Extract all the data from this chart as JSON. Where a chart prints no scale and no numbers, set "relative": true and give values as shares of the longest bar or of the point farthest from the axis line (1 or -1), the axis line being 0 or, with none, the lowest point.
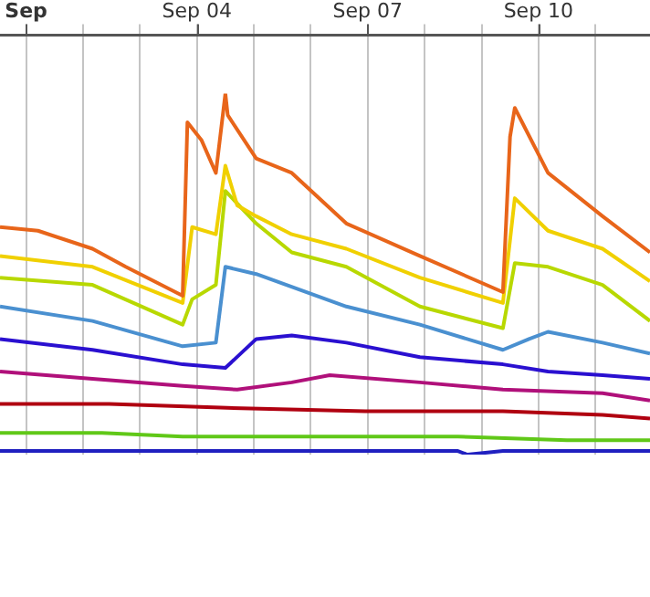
{
  "chart_data": [
    {
      "type": "line",
      "relative": true,
      "grid": "x",
      "xlim": [
        "--08-31T13:00",
        "--09-11T23:00"
      ],
      "xticks": [
        {
          "value": "--09-01",
          "label": "Sep"
        },
        {
          "value": "--09-02",
          "label": null
        },
        {
          "value": "--09-03",
          "label": null
        },
        {
          "value": "--09-04",
          "label": "Sep 04"
        },
        {
          "value": "--09-05",
          "label": null
        },
        {
          "value": "--09-06",
          "label": null
        },
        {
          "value": "--09-07",
          "label": "Sep 07"
        },
        {
          "value": "--09-08",
          "label": null
        },
        {
          "value": "--09-09",
          "label": null
        },
        {
          "value": "--09-10",
          "label": "Sep 10"
        },
        {
          "value": "--09-11",
          "label": null
        }
      ],
      "series": [
        {
          "color": "#e8651a",
          "x": [
            "--08-31T13:00",
            "--09-01T05:00",
            "--09-02T04:00",
            "--09-02T18:00",
            "--09-03T18:00",
            "--09-03T20:00",
            "--09-04T02:00",
            "--09-04T08:00",
            "--09-04T12:00",
            "--09-04T13:00",
            "--09-05T01:00",
            "--09-05T16:00",
            "--09-06T15:00",
            "--09-07T22:00",
            "--09-09T09:00",
            "--09-09T12:00",
            "--09-09T14:00",
            "--09-10T04:00",
            "--09-11T03:00",
            "--09-11T23:00"
          ],
          "values": [
            0.63,
            0.62,
            0.57,
            0.52,
            0.44,
            0.92,
            0.87,
            0.78,
            1,
            0.94,
            0.82,
            0.78,
            0.64,
            0.55,
            0.45,
            0.88,
            0.96,
            0.78,
            0.66,
            0.56
          ]
        },
        {
          "color": "#f0d000",
          "x": [
            "--08-31T13:00",
            "--09-02T04:00",
            "--09-03T18:00",
            "--09-03T22:00",
            "--09-04T08:00",
            "--09-04T12:00",
            "--09-04T17:00",
            "--09-05T01:00",
            "--09-05T16:00",
            "--09-06T15:00",
            "--09-07T22:00",
            "--09-09T09:00",
            "--09-09T14:00",
            "--09-10T04:00",
            "--09-11T03:00",
            "--09-11T23:00"
          ],
          "values": [
            0.55,
            0.52,
            0.42,
            0.63,
            0.61,
            0.8,
            0.69,
            0.66,
            0.61,
            0.57,
            0.49,
            0.42,
            0.71,
            0.62,
            0.57,
            0.48
          ]
        },
        {
          "color": "#b8d800",
          "x": [
            "--08-31T13:00",
            "--09-02T04:00",
            "--09-03T18:00",
            "--09-03T22:00",
            "--09-04T08:00",
            "--09-04T12:00",
            "--09-05T01:00",
            "--09-05T16:00",
            "--09-06T15:00",
            "--09-07T22:00",
            "--09-09T09:00",
            "--09-09T14:00",
            "--09-10T04:00",
            "--09-11T03:00",
            "--09-11T23:00"
          ],
          "values": [
            0.49,
            0.47,
            0.36,
            0.43,
            0.47,
            0.73,
            0.64,
            0.56,
            0.52,
            0.41,
            0.35,
            0.53,
            0.52,
            0.47,
            0.37
          ]
        },
        {
          "color": "#4a90d0",
          "x": [
            "--08-31T13:00",
            "--09-02T04:00",
            "--09-03T18:00",
            "--09-04T08:00",
            "--09-04T12:00",
            "--09-05T01:00",
            "--09-06T15:00",
            "--09-07T22:00",
            "--09-09T09:00",
            "--09-09T20:00",
            "--09-10T04:00",
            "--09-11T03:00",
            "--09-11T23:00"
          ],
          "values": [
            0.41,
            0.37,
            0.3,
            0.31,
            0.52,
            0.5,
            0.41,
            0.36,
            0.29,
            0.32,
            0.34,
            0.31,
            0.28
          ]
        },
        {
          "color": "#2a10d0",
          "x": [
            "--08-31T13:00",
            "--09-02T04:00",
            "--09-03T18:00",
            "--09-04T12:00",
            "--09-05T01:00",
            "--09-05T16:00",
            "--09-06T15:00",
            "--09-07T22:00",
            "--09-09T09:00",
            "--09-10T04:00",
            "--09-11T03:00",
            "--09-11T23:00"
          ],
          "values": [
            0.32,
            0.29,
            0.25,
            0.24,
            0.32,
            0.33,
            0.31,
            0.27,
            0.25,
            0.23,
            0.22,
            0.21
          ]
        },
        {
          "color": "#b0107a",
          "x": [
            "--08-31T13:00",
            "--09-02T04:00",
            "--09-03T18:00",
            "--09-04T17:00",
            "--09-05T16:00",
            "--09-06T08:00",
            "--09-07T22:00",
            "--09-09T09:00",
            "--09-11T03:00",
            "--09-11T23:00"
          ],
          "values": [
            0.23,
            0.21,
            0.19,
            0.18,
            0.2,
            0.22,
            0.2,
            0.18,
            0.17,
            0.15
          ]
        },
        {
          "color": "#b00010",
          "x": [
            "--08-31T13:00",
            "--09-02T11:00",
            "--09-04T10:00",
            "--09-06T23:00",
            "--09-09T09:00",
            "--09-11T03:00",
            "--09-11T23:00"
          ],
          "values": [
            0.14,
            0.14,
            0.13,
            0.12,
            0.12,
            0.11,
            0.1
          ]
        },
        {
          "color": "#60c818",
          "x": [
            "--08-31T13:00",
            "--09-02T08:00",
            "--09-03T18:00",
            "--09-06T08:00",
            "--09-08T14:00",
            "--09-10T12:00",
            "--09-11T23:00"
          ],
          "values": [
            0.06,
            0.06,
            0.05,
            0.05,
            0.05,
            0.04,
            0.04
          ]
        },
        {
          "color": "#2020c0",
          "x": [
            "--08-31T13:00",
            "--09-08T14:00",
            "--09-08T18:00",
            "--09-09T09:00",
            "--09-11T23:00"
          ],
          "values": [
            0.01,
            0.01,
            0,
            0.01,
            0.01
          ]
        }
      ]
    }
  ]
}
